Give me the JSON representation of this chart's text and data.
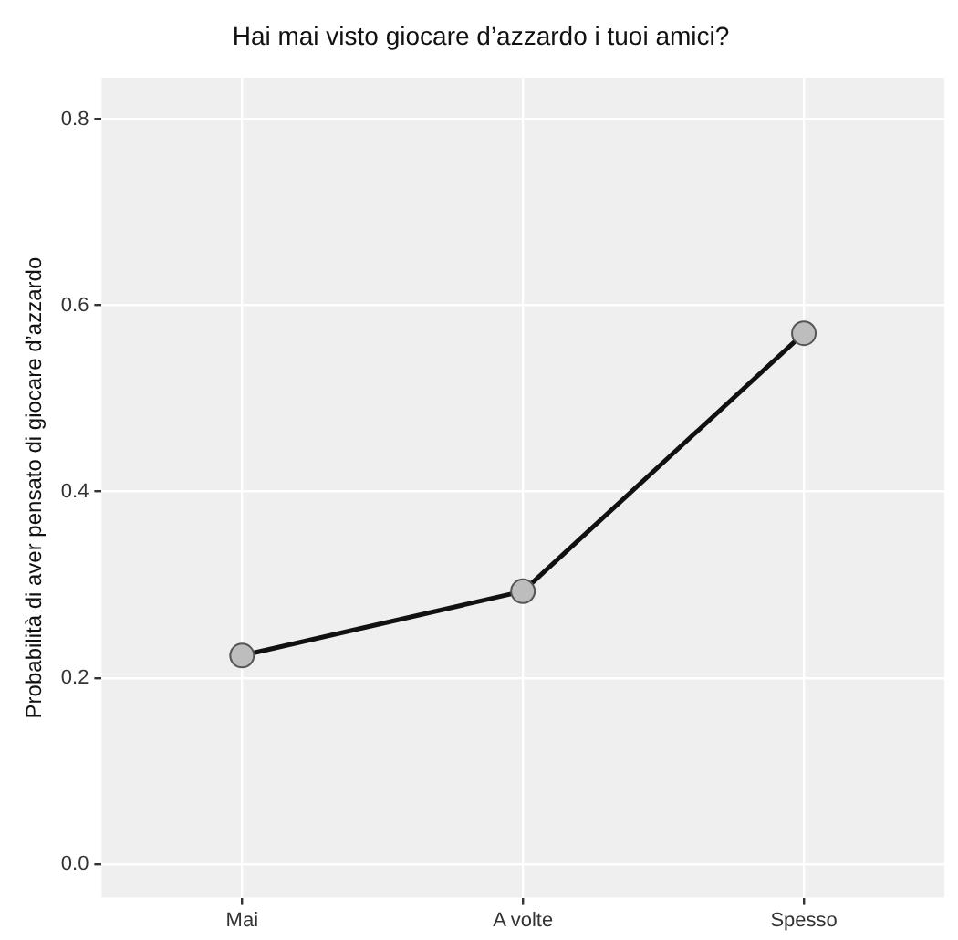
{
  "chart_data": {
    "type": "line",
    "title": "Hai mai visto giocare d’azzardo i tuoi amici?",
    "ylabel": "Probabilità di aver pensato di giocare d’azzardo",
    "categories": [
      "Mai",
      "A volte",
      "Spesso"
    ],
    "series": [
      {
        "color": "#111111",
        "values": [
          0.224,
          0.293,
          0.57
        ]
      }
    ],
    "ylim": [
      -0.036,
      0.844
    ],
    "yticks": [
      {
        "value": 0,
        "label": "0.0"
      },
      0.2,
      0.4,
      0.6,
      {
        "value": 0.8,
        "label": "0.8"
      }
    ],
    "grid": true,
    "legend": false,
    "marker": "circle",
    "line_style": "solid"
  }
}
